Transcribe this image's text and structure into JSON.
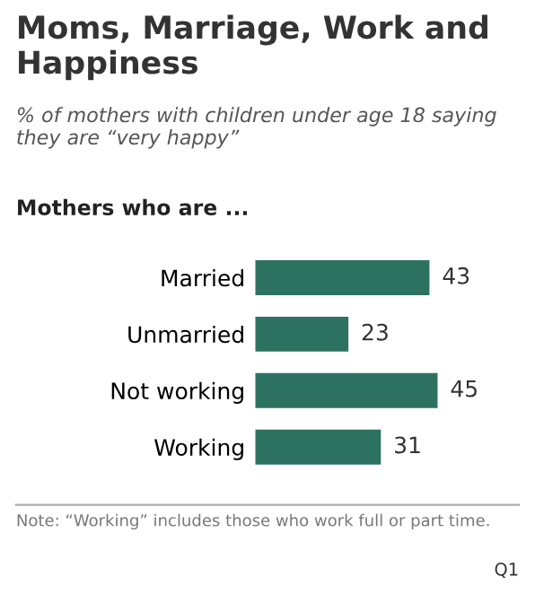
{
  "chart_data": {
    "type": "bar",
    "orientation": "horizontal",
    "title": "Moms, Marriage, Work and Happiness",
    "subtitle": "% of mothers with children under age 18 saying they are “very happy”",
    "ylabel": "Mothers who are ...",
    "categories": [
      "Married",
      "Unmarried",
      "Not working",
      "Working"
    ],
    "values": [
      43,
      23,
      45,
      31
    ],
    "color": "#2d7261",
    "data_labels": true,
    "grid": false,
    "legend": false,
    "annotations": [
      "Note: “Working” includes those who work full or part time.",
      "Q1"
    ]
  }
}
